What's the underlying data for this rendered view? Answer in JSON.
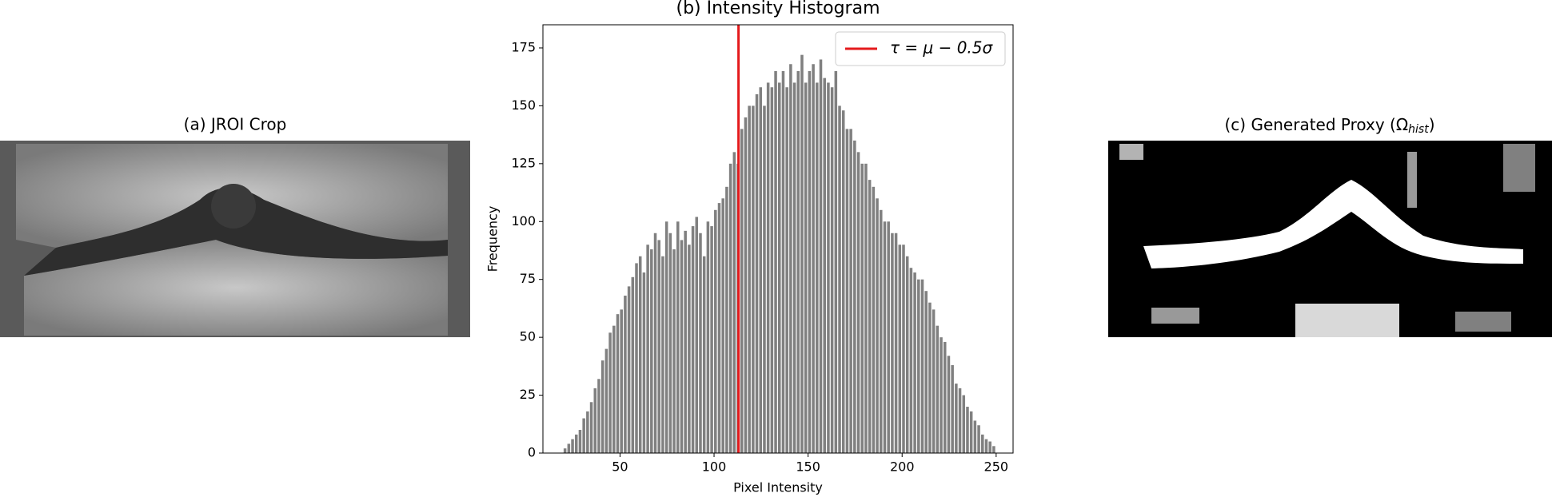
{
  "image_a": {
    "title": "(a) JROI Crop"
  },
  "chart_data": {
    "type": "histogram",
    "title": "(b) Intensity Histogram",
    "xlabel": "Pixel Intensity",
    "ylabel": "Frequency",
    "bins": [
      20,
      22,
      24,
      26,
      28,
      30,
      32,
      34,
      36,
      38,
      40,
      42,
      44,
      46,
      48,
      50,
      52,
      54,
      56,
      58,
      60,
      62,
      64,
      66,
      68,
      70,
      72,
      74,
      76,
      78,
      80,
      82,
      84,
      86,
      88,
      90,
      92,
      94,
      96,
      98,
      100,
      102,
      104,
      106,
      108,
      110,
      112,
      114,
      116,
      118,
      120,
      122,
      124,
      126,
      128,
      130,
      132,
      134,
      136,
      138,
      140,
      142,
      144,
      146,
      148,
      150,
      152,
      154,
      156,
      158,
      160,
      162,
      164,
      166,
      168,
      170,
      172,
      174,
      176,
      178,
      180,
      182,
      184,
      186,
      188,
      190,
      192,
      194,
      196,
      198,
      200,
      202,
      204,
      206,
      208,
      210,
      212,
      214,
      216,
      218,
      220,
      222,
      224,
      226,
      228,
      230,
      232,
      234,
      236,
      238,
      240,
      242,
      244,
      246,
      248,
      250
    ],
    "counts": [
      2,
      4,
      6,
      8,
      10,
      15,
      18,
      22,
      28,
      32,
      40,
      45,
      52,
      55,
      60,
      62,
      68,
      72,
      76,
      82,
      85,
      78,
      90,
      88,
      95,
      92,
      85,
      100,
      95,
      88,
      100,
      92,
      96,
      90,
      98,
      102,
      95,
      85,
      100,
      98,
      105,
      108,
      110,
      115,
      125,
      130,
      125,
      140,
      145,
      150,
      150,
      155,
      158,
      150,
      160,
      158,
      165,
      160,
      165,
      158,
      168,
      160,
      165,
      172,
      160,
      165,
      168,
      160,
      170,
      162,
      160,
      158,
      165,
      150,
      148,
      140,
      140,
      135,
      130,
      125,
      125,
      118,
      115,
      110,
      105,
      100,
      100,
      95,
      95,
      90,
      90,
      85,
      80,
      78,
      75,
      75,
      70,
      65,
      62,
      55,
      50,
      48,
      42,
      38,
      30,
      28,
      25,
      20,
      18,
      14,
      12,
      8,
      6,
      5,
      3
    ],
    "color": "#808080",
    "xlim": [
      9,
      259
    ],
    "ylim": [
      0,
      185
    ],
    "xticks": [
      50,
      100,
      150,
      200,
      250
    ],
    "yticks": [
      0,
      25,
      50,
      75,
      100,
      125,
      150,
      175
    ],
    "threshold": {
      "value": 113,
      "color": "#e41a1c",
      "label": "τ = μ − 0.5σ"
    },
    "legend": "upper right"
  },
  "image_c": {
    "title": "(c) Generated Proxy (Ω",
    "title_subscript": "hist",
    "title_end": ")"
  }
}
